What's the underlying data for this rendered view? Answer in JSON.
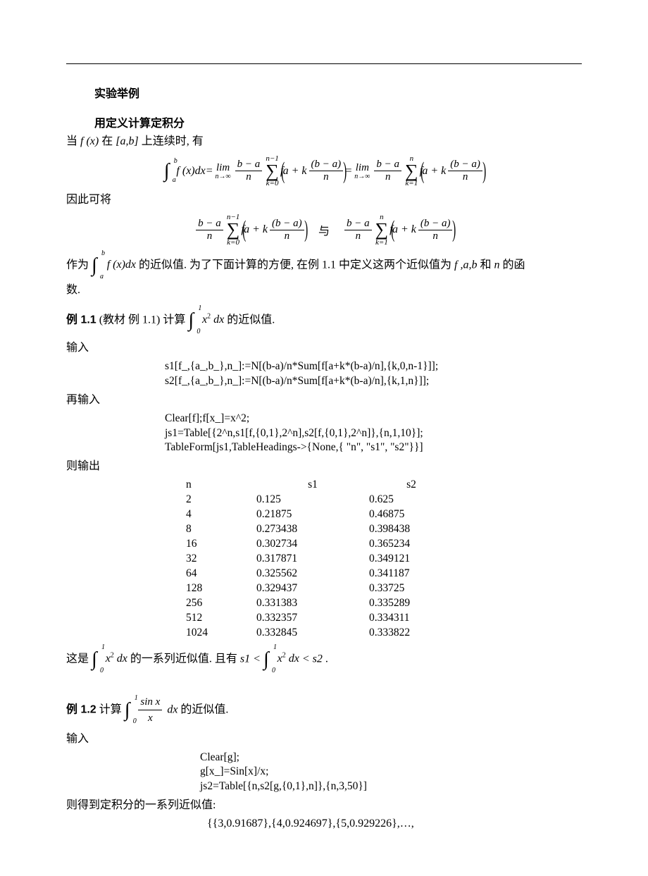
{
  "heading": "实验举例",
  "subheading": "用定义计算定积分",
  "intro_1a": "当 ",
  "intro_1b": " 在 ",
  "intro_1c": " 上连续时,  有",
  "fx": "f (x)",
  "ab": "[a,b]",
  "therefore": "因此可将",
  "gap_text": "与",
  "as_approx_a": "作为",
  "as_approx_b": " 的近似值.  为了下面计算的方便,  在例 1.1 中定义这两个近似值为 ",
  "as_approx_vars": "f ,a,b",
  "as_approx_c": " 和 ",
  "as_approx_n": "n",
  "as_approx_d": " 的函",
  "as_approx_e": "数.",
  "ex11_label": "例 1.1",
  "ex11_src": " (教材  例 1.1)  计算",
  "ex11_tail": " 的近似值.",
  "input_label": "输入",
  "reinput_label": "再输入",
  "output_label": "则输出",
  "code1_l1": "s1[f_,{a_,b_},n_]:=N[(b-a)/n*Sum[f[a+k*(b-a)/n],{k,0,n-1}]];",
  "code1_l2": "s2[f_,{a_,b_},n_]:=N[(b-a)/n*Sum[f[a+k*(b-a)/n],{k,1,n}]];",
  "code2_l1": "Clear[f];f[x_]=x^2;",
  "code2_l2": "js1=Table[{2^n,s1[f,{0,1},2^n],s2[f,{0,1},2^n]},{n,1,10}];",
  "code2_l3": "TableForm[js1,TableHeadings->{None,{ \"n\", \"s1\", \"s2\"}}]",
  "table": {
    "head": [
      "n",
      "s1",
      "s2"
    ],
    "rows": [
      [
        "2",
        "0.125",
        "0.625"
      ],
      [
        "4",
        "0.21875",
        "0.46875"
      ],
      [
        "8",
        "0.273438",
        "0.398438"
      ],
      [
        "16",
        "0.302734",
        "0.365234"
      ],
      [
        "32",
        "0.317871",
        "0.349121"
      ],
      [
        "64",
        "0.325562",
        "0.341187"
      ],
      [
        "128",
        "0.329437",
        "0.33725"
      ],
      [
        "256",
        "0.331383",
        "0.335289"
      ],
      [
        "512",
        "0.332357",
        "0.334311"
      ],
      [
        "1024",
        "0.332845",
        "0.333822"
      ]
    ]
  },
  "tail1_a": "这是",
  "tail1_b": " 的一系列近似值.  且有 ",
  "tail1_c": ".",
  "s1lt": "s1",
  "s2gt": "s2",
  "ex12_label": "例 1.2",
  "ex12_compute": "  计算",
  "ex12_tail": " 的近似值.",
  "code3_l1": "Clear[g];",
  "code3_l2": "g[x_]=Sin[x]/x;",
  "code3_l3": "js2=Table[{n,s2[g,{0,1},n]},{n,3,50}]",
  "result_intro": "则得到定积分的一系列近似值:",
  "result_line": "{{3,0.91687},{4,0.924697},{5,0.929226},…,",
  "formula_parts": {
    "lim": "lim",
    "ninf": "n→∞",
    "bma": "b − a",
    "n": "n",
    "sum_top_nm1": "n−1",
    "sum_top_n": "n",
    "sum_bot_k0": "k=0",
    "sum_bot_k1": "k=1",
    "f": "f",
    "a_plus_k": "a + k",
    "eq": " = ",
    "fxdx": "f (x)dx",
    "x2dx": "x²dx",
    "sinx": "sin x",
    "x": "x",
    "dx": " dx",
    "lt": " < ",
    "int_a": "a",
    "int_b": "b",
    "int_0": "0",
    "int_1": "1"
  }
}
